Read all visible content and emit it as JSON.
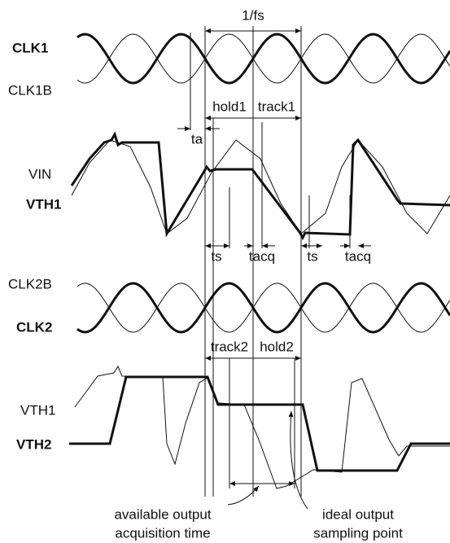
{
  "signals": {
    "clk1": "CLK1",
    "clk1b": "CLK1B",
    "vin": "VIN",
    "vth1": "VTH1",
    "clk2b": "CLK2B",
    "clk2": "CLK2",
    "vth1_lower": "VTH1",
    "vth2": "VTH2"
  },
  "annotations": {
    "period": "1/fs",
    "ta": "ta",
    "hold1": "hold1",
    "track1": "track1",
    "ts_1": "ts",
    "tacq_1": "tacq",
    "ts_2": "ts",
    "tacq_2": "tacq",
    "track2": "track2",
    "hold2": "hold2",
    "available": [
      "available output",
      "acquisition time"
    ],
    "ideal": [
      "ideal output",
      "sampling point"
    ]
  }
}
